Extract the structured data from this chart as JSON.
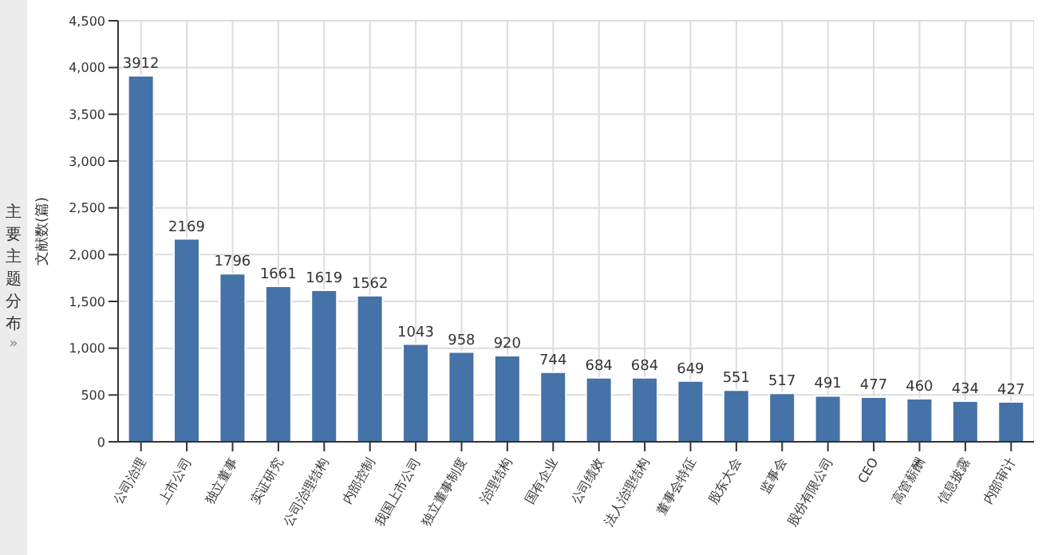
{
  "chart_data": {
    "type": "bar",
    "ylabel": "文献数(篇)",
    "annotations": [
      "主要主题分布",
      "»"
    ],
    "categories": [
      "公司治理",
      "上市公司",
      "独立董事",
      "实证研究",
      "公司治理结构",
      "内部控制",
      "我国上市公司",
      "独立董事制度",
      "治理结构",
      "国有企业",
      "公司绩效",
      "法人治理结构",
      "董事会特征",
      "股东大会",
      "监事会",
      "股份有限公司",
      "CEO",
      "高管薪酬",
      "信息披露",
      "内部审计"
    ],
    "values": [
      3912,
      2169,
      1796,
      1661,
      1619,
      1562,
      1043,
      958,
      920,
      744,
      684,
      684,
      649,
      551,
      517,
      491,
      477,
      460,
      434,
      427
    ],
    "color": "#4572a7",
    "data_labels": true,
    "ylim": [
      0,
      4500
    ],
    "yticks": [
      {
        "value": 0,
        "label": "0"
      },
      {
        "value": 500,
        "label": "500"
      },
      {
        "value": 1000,
        "label": "1,000"
      },
      {
        "value": 1500,
        "label": "1,500"
      },
      {
        "value": 2000,
        "label": "2,000"
      },
      {
        "value": 2500,
        "label": "2,500"
      },
      {
        "value": 3000,
        "label": "3,000"
      },
      {
        "value": 3500,
        "label": "3,500"
      },
      {
        "value": 4000,
        "label": "4,000"
      },
      {
        "value": 4500,
        "label": "4,500"
      }
    ],
    "grid": true,
    "legend": false
  }
}
